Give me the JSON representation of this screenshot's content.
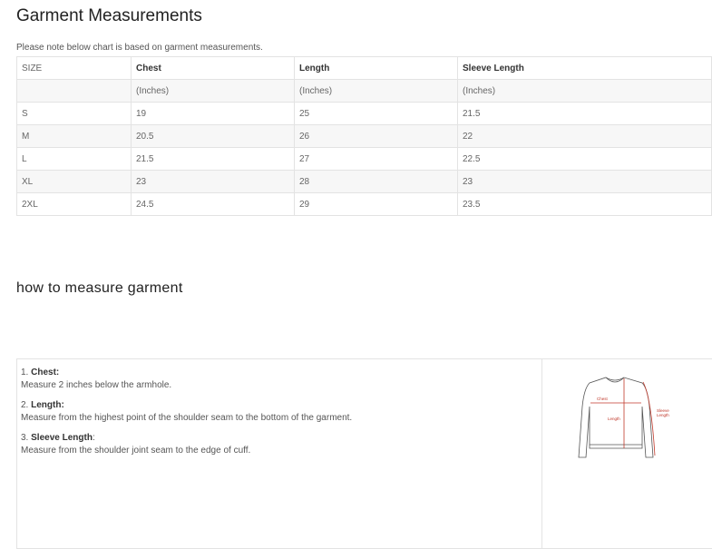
{
  "title": "Garment Measurements",
  "note": "Please note below chart is based on garment measurements.",
  "table": {
    "headers": [
      "SIZE",
      "Chest",
      "Length",
      "Sleeve Length"
    ],
    "units": [
      "",
      "(Inches)",
      "(Inches)",
      "(Inches)"
    ],
    "rows": [
      [
        "S",
        "19",
        "25",
        "21.5"
      ],
      [
        "M",
        "20.5",
        "26",
        "22"
      ],
      [
        "L",
        "21.5",
        "27",
        "22.5"
      ],
      [
        "XL",
        "23",
        "28",
        "23"
      ],
      [
        "2XL",
        "24.5",
        "29",
        "23.5"
      ]
    ]
  },
  "how_title": "how to measure garment",
  "steps": [
    {
      "num": "1.",
      "label": "Chest:",
      "text": "Measure 2 inches below the armhole."
    },
    {
      "num": "2.",
      "label": "Length:",
      "text": "Measure from the highest point of the shoulder seam to the bottom of the garment."
    },
    {
      "num": "3.",
      "label": "Sleeve Length",
      "text": "Measure from the shoulder joint seam to the edge of cuff."
    }
  ],
  "diagram": {
    "chest": "Chest",
    "length": "Length",
    "sleeve1": "Sleeve",
    "sleeve2": "Length",
    "accent": "#c0392b"
  }
}
